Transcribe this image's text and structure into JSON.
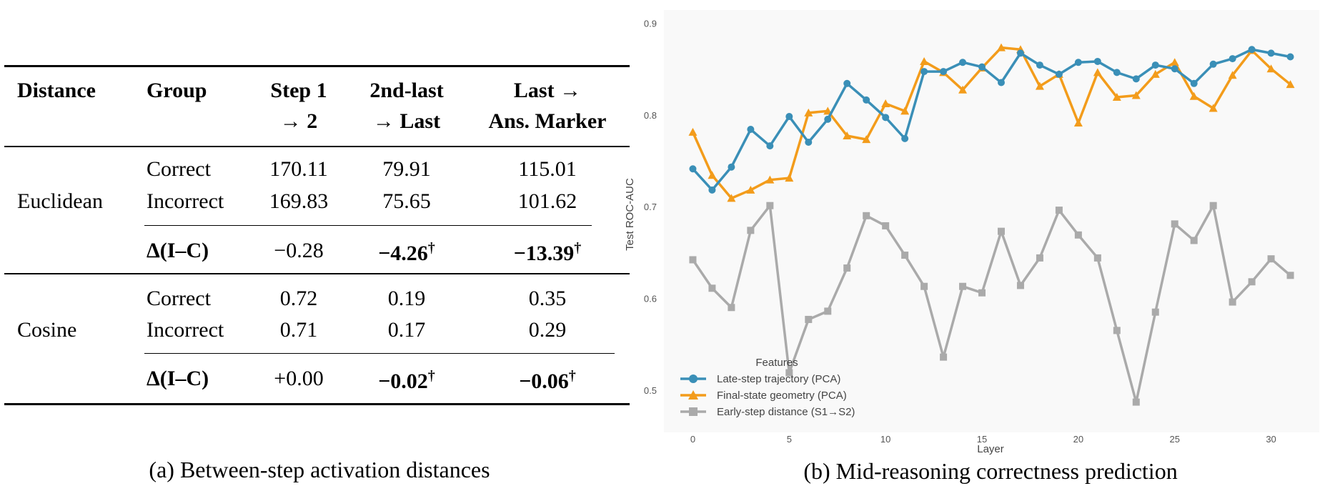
{
  "table": {
    "headers": [
      [
        "Distance",
        ""
      ],
      [
        "Group",
        ""
      ],
      [
        "Step 1",
        "→ 2"
      ],
      [
        "2nd-last",
        "→ Last"
      ],
      [
        "Last →",
        "Ans. Marker"
      ]
    ],
    "sections": [
      {
        "distance": "Euclidean",
        "rows": [
          {
            "group": "Correct",
            "values": [
              "170.11",
              "79.91",
              "115.01"
            ]
          },
          {
            "group": "Incorrect",
            "values": [
              "169.83",
              "75.65",
              "101.62"
            ]
          }
        ],
        "delta": {
          "group": "Δ(I–C)",
          "values": [
            "−0.28",
            "−4.26",
            "−13.39"
          ],
          "daggers": [
            "",
            "†",
            "†"
          ],
          "bold": [
            false,
            true,
            true
          ]
        }
      },
      {
        "distance": "Cosine",
        "rows": [
          {
            "group": "Correct",
            "values": [
              "0.72",
              "0.19",
              "0.35"
            ]
          },
          {
            "group": "Incorrect",
            "values": [
              "0.71",
              "0.17",
              "0.29"
            ]
          }
        ],
        "delta": {
          "group": "Δ(I–C)",
          "values": [
            "+0.00",
            "−0.02",
            "−0.06"
          ],
          "daggers": [
            "",
            "†",
            "†"
          ],
          "bold": [
            false,
            true,
            true
          ]
        }
      }
    ],
    "caption": "(a) Between-step activation distances"
  },
  "chart_caption": "(b) Mid-reasoning correctness prediction",
  "chart_data": {
    "type": "line",
    "xlabel": "Layer",
    "ylabel": "Test ROC-AUC",
    "xlim": [
      -1.5,
      32.5
    ],
    "ylim": [
      0.455,
      0.915
    ],
    "xticks": [
      0,
      5,
      10,
      15,
      20,
      25,
      30
    ],
    "yticks": [
      0.5,
      0.6,
      0.7,
      0.8,
      0.9
    ],
    "grid": false,
    "background": "#f9f9f9",
    "legend": {
      "title": "Features",
      "placement": "bottom-left"
    },
    "x": [
      0,
      1,
      2,
      3,
      4,
      5,
      6,
      7,
      8,
      9,
      10,
      11,
      12,
      13,
      14,
      15,
      16,
      17,
      18,
      19,
      20,
      21,
      22,
      23,
      24,
      25,
      26,
      27,
      28,
      29,
      30,
      31
    ],
    "series": [
      {
        "name": "Late-step trajectory (PCA)",
        "color": "#3a8fb7",
        "marker": "circle",
        "values": [
          0.742,
          0.719,
          0.744,
          0.785,
          0.767,
          0.799,
          0.771,
          0.796,
          0.835,
          0.817,
          0.798,
          0.775,
          0.848,
          0.848,
          0.858,
          0.853,
          0.836,
          0.868,
          0.855,
          0.845,
          0.858,
          0.859,
          0.847,
          0.84,
          0.855,
          0.851,
          0.835,
          0.856,
          0.862,
          0.872,
          0.868,
          0.864
        ]
      },
      {
        "name": "Final-state geometry (PCA)",
        "color": "#f39c1b",
        "marker": "triangle",
        "values": [
          0.782,
          0.735,
          0.71,
          0.719,
          0.73,
          0.732,
          0.803,
          0.805,
          0.778,
          0.774,
          0.813,
          0.805,
          0.859,
          0.847,
          0.828,
          0.852,
          0.874,
          0.872,
          0.832,
          0.845,
          0.792,
          0.847,
          0.82,
          0.822,
          0.845,
          0.858,
          0.821,
          0.808,
          0.844,
          0.871,
          0.851,
          0.834
        ]
      },
      {
        "name": "Early-step distance (S1→S2)",
        "color": "#aaaaaa",
        "marker": "square",
        "values": [
          0.643,
          0.612,
          0.591,
          0.675,
          0.702,
          0.52,
          0.578,
          0.587,
          0.634,
          0.691,
          0.68,
          0.648,
          0.614,
          0.537,
          0.614,
          0.607,
          0.674,
          0.615,
          0.645,
          0.697,
          0.67,
          0.645,
          0.566,
          0.488,
          0.586,
          0.682,
          0.664,
          0.702,
          0.597,
          0.619,
          0.644,
          0.626
        ]
      }
    ]
  }
}
